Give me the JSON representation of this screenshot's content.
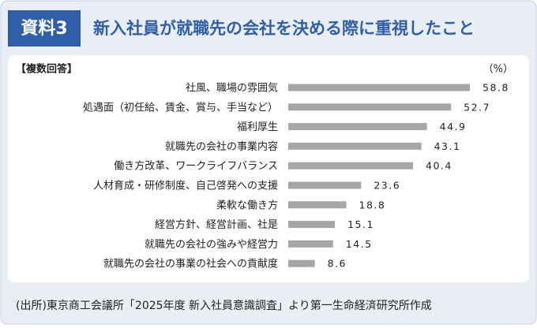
{
  "chart_data": {
    "type": "bar",
    "orientation": "horizontal",
    "figure_label": "資料3",
    "title": "新入社員が就職先の会社を決める際に重視したこと",
    "subtitle": "【複数回答】",
    "unit_label": "（%）",
    "categories": [
      "社風、職場の雰囲気",
      "処遇面（初任給、賃金、賞与、手当など）",
      "福利厚生",
      "就職先の会社の事業内容",
      "働き方改革、ワークライフバランス",
      "人材育成・研修制度、自己啓発への支援",
      "柔軟な働き方",
      "経営方針、経営計画、社是",
      "就職先の会社の強みや経営力",
      "就職先の会社の事業の社会への貢献度"
    ],
    "values": [
      58.8,
      52.7,
      44.9,
      43.1,
      40.4,
      23.6,
      18.8,
      15.1,
      14.5,
      8.6
    ],
    "color": "#a6a6a6",
    "source": "(出所)東京商工会議所「2025年度 新入社員意識調査」より第一生命経済研究所作成"
  }
}
